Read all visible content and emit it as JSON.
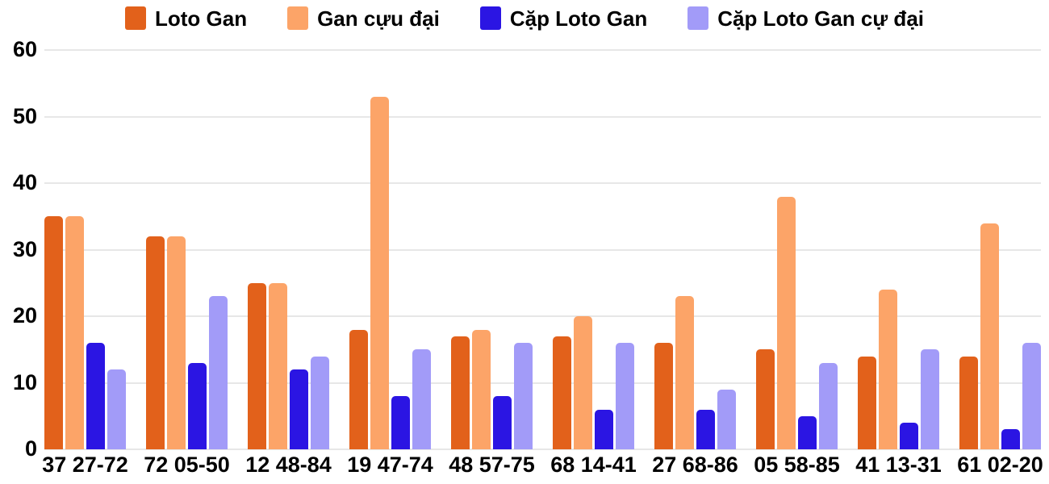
{
  "legend": {
    "items": [
      {
        "label": "Loto Gan",
        "color": "#E2611B"
      },
      {
        "label": "Gan cựu đại",
        "color": "#FCA468"
      },
      {
        "label": "Cặp Loto Gan",
        "color": "#2B15E3"
      },
      {
        "label": "Cặp Loto Gan cự đại",
        "color": "#A29BF8"
      }
    ]
  },
  "chart_data": {
    "type": "bar",
    "title": "",
    "xlabel": "",
    "ylabel": "",
    "categories": [
      "37 27-72",
      "72 05-50",
      "12 48-84",
      "19 47-74",
      "48 57-75",
      "68 14-41",
      "27 68-86",
      "05 58-85",
      "41 13-31",
      "61 02-20"
    ],
    "series": [
      {
        "name": "Loto Gan",
        "color": "#E2611B",
        "values": [
          35,
          32,
          25,
          18,
          17,
          17,
          16,
          15,
          14,
          14
        ]
      },
      {
        "name": "Gan cựu đại",
        "color": "#FCA468",
        "values": [
          35,
          32,
          25,
          53,
          18,
          20,
          23,
          38,
          24,
          34
        ]
      },
      {
        "name": "Cặp Loto Gan",
        "color": "#2B15E3",
        "values": [
          16,
          13,
          12,
          8,
          8,
          6,
          6,
          5,
          4,
          3
        ]
      },
      {
        "name": "Cặp Loto Gan cự đại",
        "color": "#A29BF8",
        "values": [
          12,
          23,
          14,
          15,
          16,
          16,
          9,
          13,
          15,
          16
        ]
      }
    ],
    "yticks": [
      0,
      10,
      20,
      30,
      40,
      50,
      60
    ],
    "ylim": [
      0,
      60
    ],
    "grid": true,
    "legend_position": "top"
  },
  "colors": {
    "grid": "#E7E7E7",
    "text": "#000000",
    "background": "#FFFFFF"
  }
}
